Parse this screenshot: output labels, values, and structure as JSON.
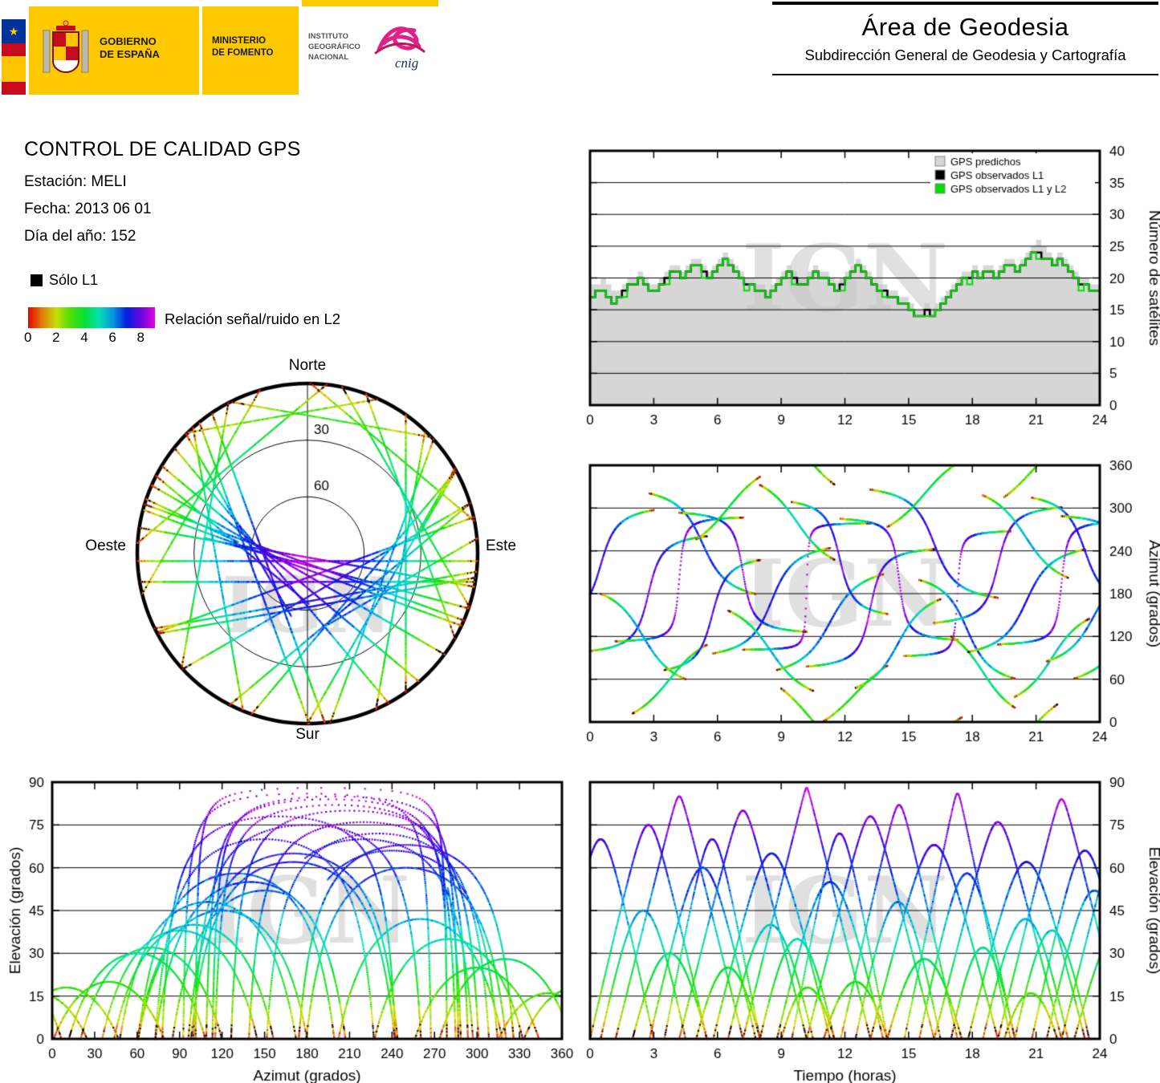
{
  "header": {
    "gobierno": [
      "GOBIERNO",
      "DE ESPAÑA"
    ],
    "ministerio": [
      "MINISTERIO",
      "DE FOMENTO"
    ],
    "instituto": [
      "INSTITUTO",
      "GEOGRÁFICO",
      "NACIONAL"
    ],
    "cnig": "cnig",
    "area_title": "Área de Geodesia",
    "area_subtitle": "Subdirección General de Geodesia y Cartografía"
  },
  "info": {
    "title": "CONTROL DE CALIDAD GPS",
    "station": "Estación: MELI",
    "date": "Fecha: 2013 06 01",
    "doy": "Día del año: 152"
  },
  "legend": {
    "solo_l1": "Sólo L1",
    "colorbar_label": "Relación señal/ruido en L2",
    "ticks": [
      0,
      2,
      4,
      6,
      8
    ],
    "range": [
      0,
      9
    ],
    "colormap": {
      "hue_start": 0,
      "hue_end": 300,
      "saturation": 95,
      "lightness": 45
    }
  },
  "skyplot": {
    "labels": {
      "n": "Norte",
      "s": "Sur",
      "e": "Este",
      "w": "Oeste"
    },
    "rings": [
      30,
      60
    ],
    "watermark": "IGN"
  },
  "satellite_passes": {
    "fields": [
      "t0_hours",
      "duration_hours",
      "azimuth_at_peak_deg",
      "max_elevation_deg",
      "direction"
    ],
    "sample_step_hours": 0.02,
    "point_size": 2.2,
    "rows": [
      [
        0.0,
        5.5,
        180,
        75,
        1
      ],
      [
        0.5,
        4.0,
        120,
        45,
        -1
      ],
      [
        1.2,
        6.0,
        200,
        85,
        1
      ],
      [
        2.0,
        3.5,
        60,
        30,
        1
      ],
      [
        2.8,
        5.0,
        250,
        60,
        -1
      ],
      [
        3.5,
        4.5,
        150,
        70,
        1
      ],
      [
        4.2,
        6.0,
        210,
        80,
        -1
      ],
      [
        5.0,
        3.0,
        300,
        25,
        1
      ],
      [
        5.8,
        5.5,
        170,
        65,
        1
      ],
      [
        6.5,
        4.0,
        100,
        40,
        -1
      ],
      [
        7.2,
        6.0,
        190,
        88,
        1
      ],
      [
        8.0,
        3.5,
        280,
        35,
        -1
      ],
      [
        8.8,
        5.0,
        140,
        55,
        1
      ],
      [
        9.0,
        2.5,
        10,
        18,
        -1
      ],
      [
        9.5,
        4.5,
        230,
        72,
        -1
      ],
      [
        10.2,
        6.0,
        160,
        78,
        1
      ],
      [
        11.0,
        3.0,
        40,
        20,
        1
      ],
      [
        11.8,
        5.5,
        200,
        82,
        -1
      ],
      [
        12.5,
        4.0,
        110,
        48,
        1
      ],
      [
        13.2,
        6.0,
        250,
        68,
        -1
      ],
      [
        14.0,
        3.5,
        320,
        28,
        1
      ],
      [
        14.8,
        5.0,
        180,
        86,
        1
      ],
      [
        15.5,
        4.5,
        130,
        58,
        -1
      ],
      [
        16.2,
        6.0,
        220,
        76,
        1
      ],
      [
        17.0,
        3.0,
        70,
        32,
        -1
      ],
      [
        17.8,
        5.5,
        170,
        62,
        1
      ],
      [
        18.5,
        4.0,
        260,
        42,
        -1
      ],
      [
        19.2,
        6.0,
        195,
        84,
        1
      ],
      [
        19.5,
        2.5,
        350,
        16,
        1
      ],
      [
        20.0,
        3.5,
        90,
        38,
        1
      ],
      [
        20.8,
        5.0,
        240,
        66,
        -1
      ],
      [
        21.5,
        4.5,
        150,
        52,
        1
      ],
      [
        22.2,
        6.0,
        205,
        80,
        -1
      ],
      [
        -2.0,
        5.0,
        220,
        70,
        1
      ],
      [
        22.8,
        5.0,
        120,
        44,
        1
      ]
    ]
  },
  "chart_data": [
    {
      "id": "sat_count",
      "type": "area",
      "xlabel": "",
      "ylabel": "Número de satélites",
      "yside": "right",
      "xlim": [
        0,
        24
      ],
      "ylim": [
        0,
        40
      ],
      "xticks": [
        0,
        3,
        6,
        9,
        12,
        15,
        18,
        21,
        24
      ],
      "yticks": [
        0,
        5,
        10,
        15,
        20,
        25,
        30,
        35,
        40
      ],
      "step_hours": 0.25,
      "watermark": "IGN",
      "legend": [
        {
          "label": "GPS predichos",
          "color": "#d6d6d6"
        },
        {
          "label": "GPS observados L1",
          "color": "#000000"
        },
        {
          "label": "GPS observados L1 y L2",
          "color": "#00dd00"
        }
      ],
      "series": {
        "predichos": [
          19,
          19,
          20,
          19,
          18,
          18,
          19,
          20,
          20,
          21,
          20,
          19,
          19,
          20,
          21,
          22,
          22,
          21,
          22,
          23,
          23,
          22,
          21,
          22,
          23,
          24,
          23,
          22,
          21,
          20,
          20,
          19,
          19,
          18,
          19,
          20,
          21,
          22,
          21,
          20,
          20,
          21,
          22,
          21,
          21,
          20,
          19,
          20,
          21,
          22,
          23,
          22,
          21,
          20,
          19,
          19,
          18,
          18,
          17,
          17,
          16,
          15,
          15,
          16,
          15,
          16,
          17,
          18,
          19,
          20,
          21,
          21,
          22,
          21,
          22,
          22,
          21,
          22,
          23,
          23,
          22,
          23,
          24,
          25,
          26,
          25,
          24,
          23,
          24,
          23,
          22,
          21,
          20,
          20,
          19,
          19
        ],
        "observados_l1": [
          17,
          18,
          18,
          17,
          16,
          17,
          18,
          19,
          19,
          20,
          19,
          18,
          18,
          19,
          20,
          21,
          21,
          20,
          21,
          22,
          22,
          21,
          20,
          21,
          22,
          23,
          22,
          21,
          20,
          19,
          19,
          18,
          18,
          17,
          18,
          19,
          20,
          21,
          20,
          19,
          19,
          20,
          21,
          20,
          20,
          19,
          18,
          19,
          20,
          21,
          22,
          21,
          20,
          19,
          18,
          18,
          17,
          17,
          16,
          16,
          15,
          14,
          14,
          15,
          14,
          15,
          16,
          17,
          18,
          19,
          20,
          20,
          21,
          20,
          21,
          21,
          20,
          21,
          22,
          22,
          21,
          22,
          23,
          24,
          24,
          23,
          23,
          22,
          23,
          22,
          21,
          20,
          19,
          19,
          18,
          18
        ],
        "observados_l1_l2": [
          17,
          18,
          18,
          17,
          16,
          17,
          17,
          19,
          19,
          20,
          19,
          18,
          18,
          19,
          19,
          21,
          21,
          20,
          21,
          22,
          22,
          20,
          20,
          21,
          22,
          23,
          22,
          21,
          20,
          18,
          19,
          18,
          18,
          17,
          18,
          19,
          20,
          21,
          19,
          19,
          19,
          20,
          21,
          20,
          20,
          19,
          18,
          18,
          20,
          21,
          22,
          21,
          20,
          19,
          18,
          17,
          17,
          17,
          16,
          16,
          15,
          14,
          14,
          14,
          14,
          15,
          16,
          17,
          18,
          19,
          20,
          19,
          21,
          20,
          21,
          21,
          20,
          21,
          22,
          22,
          21,
          22,
          23,
          24,
          23,
          23,
          23,
          22,
          23,
          22,
          21,
          20,
          18,
          19,
          18,
          18
        ]
      }
    },
    {
      "id": "azimuth_time",
      "type": "scatter",
      "xlabel": "",
      "ylabel": "Azimut (grados)",
      "yside": "right",
      "xlim": [
        0,
        24
      ],
      "ylim": [
        0,
        360
      ],
      "xticks": [
        0,
        3,
        6,
        9,
        12,
        15,
        18,
        21,
        24
      ],
      "yticks": [
        0,
        60,
        120,
        180,
        240,
        300,
        360
      ],
      "watermark": "IGN",
      "source": "satellite_passes"
    },
    {
      "id": "elevation_azimuth",
      "type": "scatter",
      "xlabel": "Azimut (grados)",
      "ylabel": "Elevación (grados)",
      "yside": "left",
      "xlim": [
        0,
        360
      ],
      "ylim": [
        0,
        90
      ],
      "xticks": [
        0,
        30,
        60,
        90,
        120,
        150,
        180,
        210,
        240,
        270,
        300,
        330,
        360
      ],
      "yticks": [
        0,
        15,
        30,
        45,
        60,
        75,
        90
      ],
      "watermark": "IGN",
      "source": "satellite_passes"
    },
    {
      "id": "elevation_time",
      "type": "scatter",
      "xlabel": "Tiempo (horas)",
      "ylabel": "Elevación (grados)",
      "yside": "right",
      "xlim": [
        0,
        24
      ],
      "ylim": [
        0,
        90
      ],
      "xticks": [
        0,
        3,
        6,
        9,
        12,
        15,
        18,
        21,
        24
      ],
      "yticks": [
        0,
        15,
        30,
        45,
        60,
        75,
        90
      ],
      "watermark": "IGN",
      "source": "satellite_passes"
    }
  ]
}
